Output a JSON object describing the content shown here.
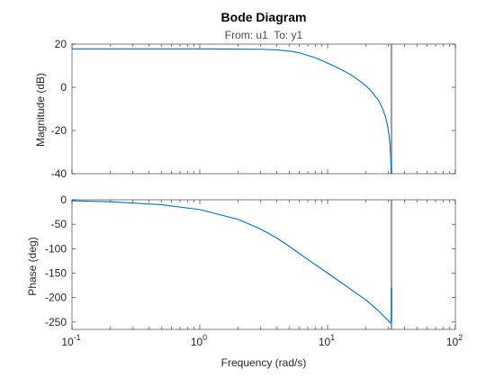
{
  "chart_data": {
    "type": "line",
    "title": "Bode Diagram",
    "subtitle": "From: u1  To: y1",
    "xlabel": "Frequency (rad/s)",
    "x_scale": "log",
    "xlim": [
      0.1,
      100
    ],
    "x_tick_labels": [
      {
        "base": "10",
        "exp": "-1"
      },
      {
        "base": "10",
        "exp": "0"
      },
      {
        "base": "10",
        "exp": "1"
      },
      {
        "base": "10",
        "exp": "2"
      }
    ],
    "line_color": "#0072BD",
    "vertical_line": {
      "x": 31.6,
      "color": "#A0A0A0"
    },
    "panels": [
      {
        "ylabel": "Magnitude (dB)",
        "ylim": [
          -40,
          20
        ],
        "yticks": [
          20,
          0,
          -20,
          -40
        ],
        "series": [
          {
            "x": [
              0.1,
              0.2,
              0.5,
              1,
              2,
              3,
              4,
              5,
              6,
              8,
              10,
              12,
              15,
              18,
              20,
              22,
              25,
              27,
              28.5,
              29.5,
              30.2,
              30.7,
              31.0,
              31.3,
              31.5
            ],
            "y": [
              17.8,
              17.8,
              17.8,
              17.8,
              17.7,
              17.6,
              17.3,
              16.8,
              16.0,
              13.7,
              11.2,
              9.0,
              6.0,
              2.8,
              0.6,
              -1.8,
              -6.0,
              -10.0,
              -14.0,
              -18.0,
              -22.0,
              -26.0,
              -30.0,
              -35.0,
              -40.0
            ]
          }
        ]
      },
      {
        "ylabel": "Phase (deg)",
        "ylim": [
          -265,
          0
        ],
        "yticks": [
          0,
          -50,
          -100,
          -150,
          -200,
          -250
        ],
        "series": [
          {
            "x": [
              0.1,
              0.2,
              0.5,
              1,
              2,
              3,
              4,
              5,
              7,
              10,
              15,
              20,
              25,
              28,
              30,
              30.8,
              31.2,
              31.6,
              31.6
            ],
            "y": [
              -2,
              -4,
              -10,
              -20,
              -40,
              -60,
              -78,
              -95,
              -122,
              -150,
              -182,
              -205,
              -227,
              -240,
              -248,
              -251,
              -252,
              -240,
              -180
            ]
          }
        ]
      }
    ]
  }
}
